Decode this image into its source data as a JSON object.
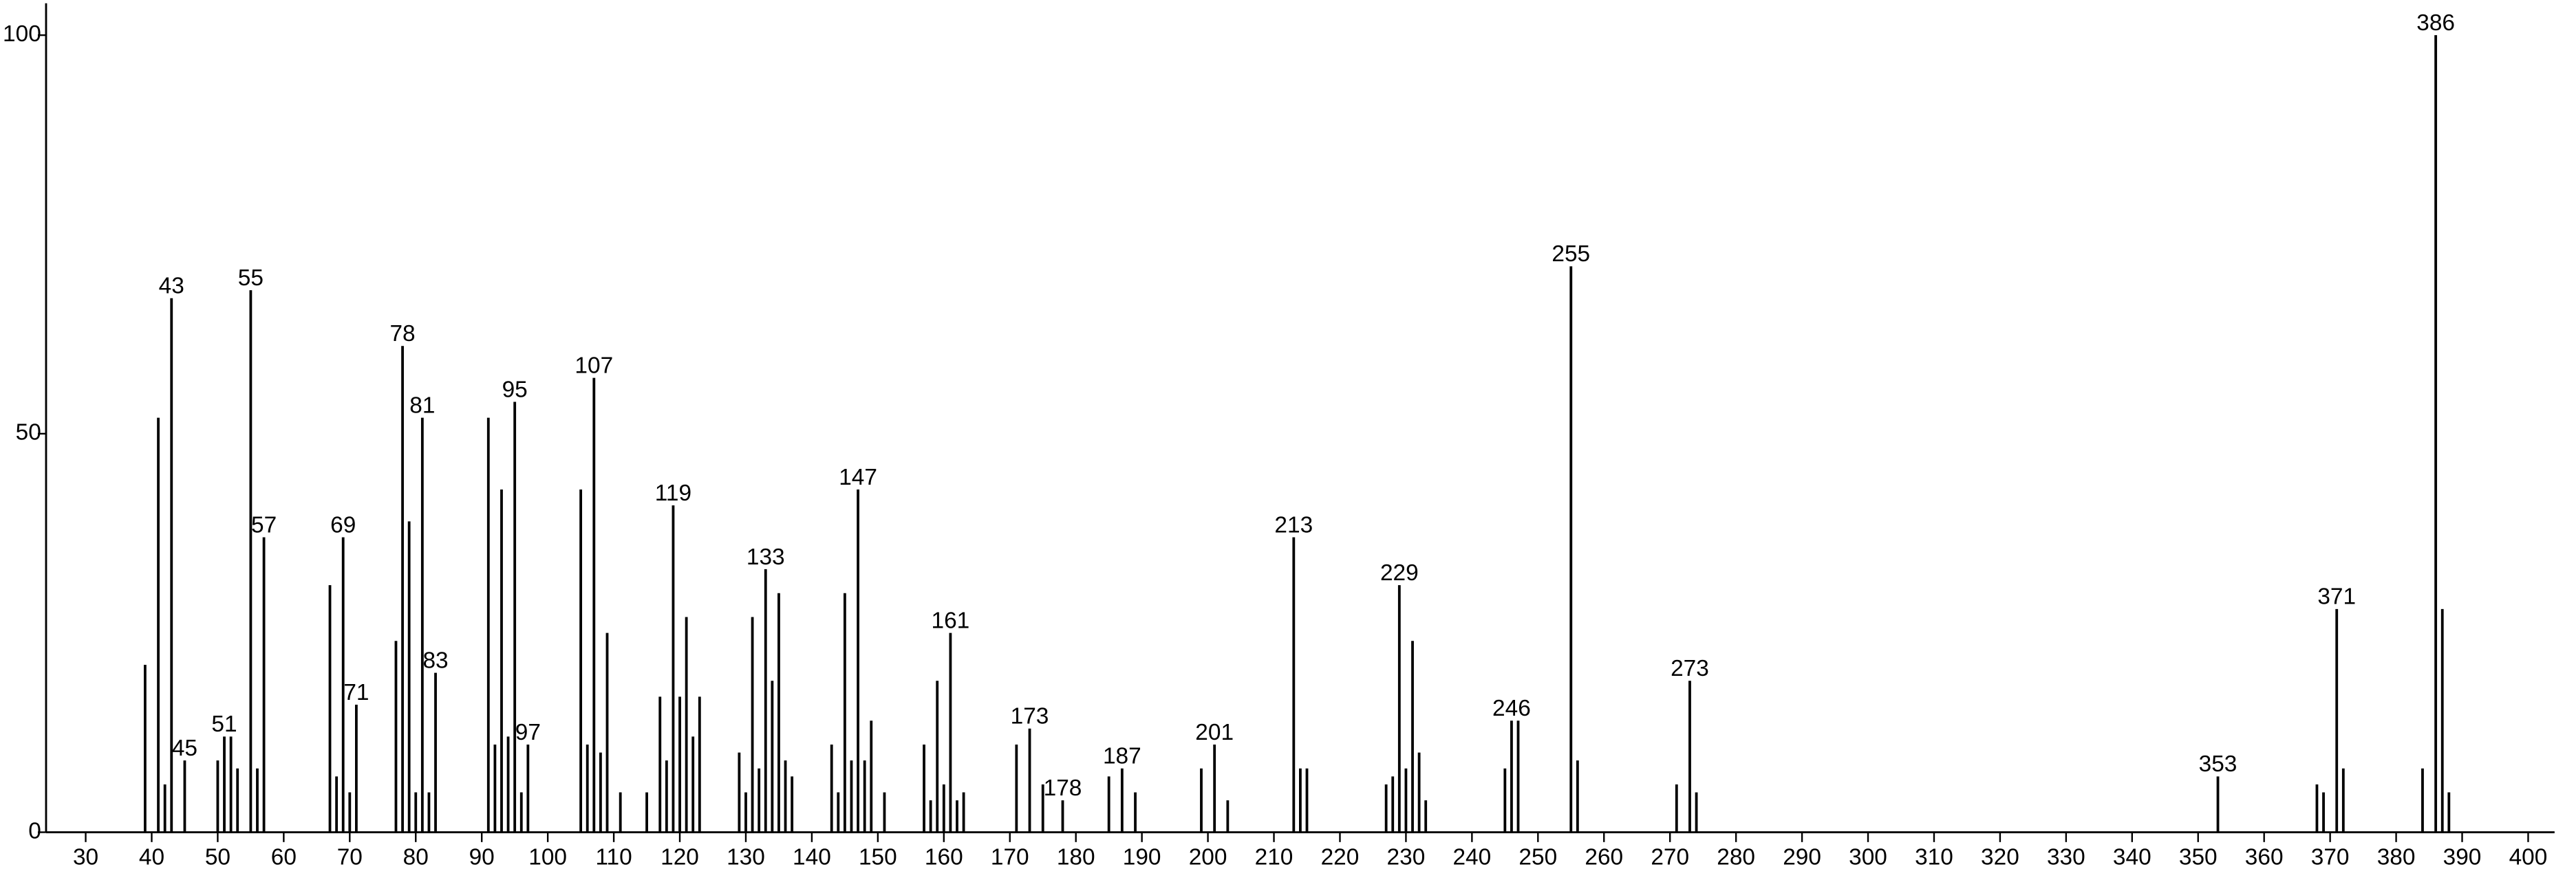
{
  "chart_data": {
    "type": "stick",
    "x": [
      39,
      41,
      42,
      43,
      45,
      50,
      51,
      52,
      53,
      55,
      56,
      57,
      67,
      68,
      69,
      70,
      71,
      77,
      78,
      79,
      80,
      81,
      82,
      83,
      91,
      92,
      93,
      94,
      95,
      96,
      97,
      105,
      106,
      107,
      108,
      109,
      111,
      115,
      117,
      118,
      119,
      120,
      121,
      122,
      123,
      129,
      130,
      131,
      132,
      133,
      134,
      135,
      136,
      137,
      143,
      144,
      145,
      146,
      147,
      148,
      149,
      151,
      157,
      158,
      159,
      160,
      161,
      162,
      163,
      171,
      173,
      175,
      178,
      185,
      187,
      189,
      199,
      201,
      203,
      213,
      214,
      215,
      227,
      228,
      229,
      230,
      231,
      232,
      233,
      245,
      246,
      247,
      255,
      256,
      271,
      273,
      274,
      353,
      368,
      369,
      371,
      372,
      384,
      386,
      387,
      388
    ],
    "values": [
      21,
      52,
      6,
      67,
      9,
      9,
      12,
      12,
      8,
      68,
      8,
      37,
      31,
      7,
      37,
      5,
      16,
      24,
      61,
      39,
      5,
      52,
      5,
      20,
      52,
      11,
      43,
      12,
      54,
      5,
      11,
      43,
      11,
      57,
      10,
      25,
      5,
      5,
      17,
      9,
      41,
      17,
      27,
      12,
      17,
      10,
      5,
      27,
      8,
      33,
      19,
      30,
      9,
      7,
      11,
      5,
      30,
      9,
      43,
      9,
      14,
      5,
      11,
      4,
      19,
      6,
      25,
      4,
      5,
      11,
      13,
      6,
      4,
      7,
      8,
      5,
      8,
      11,
      4,
      37,
      8,
      8,
      6,
      7,
      31,
      8,
      24,
      10,
      4,
      8,
      14,
      14,
      71,
      9,
      6,
      19,
      5,
      7,
      6,
      5,
      28,
      8,
      8,
      100,
      28,
      5
    ],
    "labels": [
      null,
      null,
      null,
      "43",
      "45",
      null,
      "51",
      null,
      null,
      "55",
      null,
      "57",
      null,
      null,
      "69",
      null,
      "71",
      null,
      "78",
      null,
      null,
      "81",
      null,
      "83",
      null,
      null,
      null,
      null,
      "95",
      null,
      "97",
      null,
      null,
      "107",
      null,
      null,
      null,
      null,
      null,
      null,
      "119",
      null,
      null,
      null,
      null,
      null,
      null,
      null,
      null,
      "133",
      null,
      null,
      null,
      null,
      null,
      null,
      null,
      null,
      "147",
      null,
      null,
      null,
      null,
      null,
      null,
      null,
      "161",
      null,
      null,
      null,
      "173",
      null,
      "178",
      null,
      "187",
      null,
      null,
      "201",
      null,
      "213",
      null,
      null,
      null,
      null,
      "229",
      null,
      null,
      null,
      null,
      null,
      "246",
      null,
      "255",
      null,
      null,
      "273",
      null,
      "353",
      null,
      null,
      "371",
      null,
      null,
      "386",
      null,
      null
    ],
    "color": "#000000",
    "xlim": [
      24,
      404
    ],
    "xticks": [
      30,
      40,
      50,
      60,
      70,
      80,
      90,
      100,
      110,
      120,
      130,
      140,
      150,
      160,
      170,
      180,
      190,
      200,
      210,
      220,
      230,
      240,
      250,
      260,
      270,
      280,
      290,
      300,
      310,
      320,
      330,
      340,
      350,
      360,
      370,
      380,
      390,
      400
    ],
    "ylim": [
      0,
      104
    ],
    "yticks": [
      0,
      50,
      100
    ]
  }
}
